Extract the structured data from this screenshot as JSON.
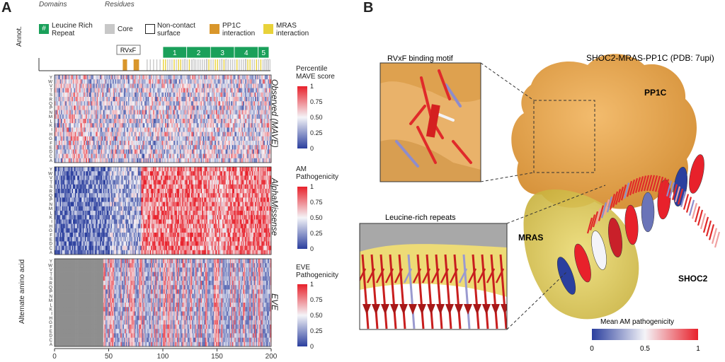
{
  "panels": {
    "a": "A",
    "b": "B"
  },
  "legend": {
    "domains_title": "Domains",
    "residues_title": "Residues",
    "lrr_symbol": "#",
    "lrr_label_1": "Leucine Rich",
    "lrr_label_2": "Repeat",
    "core_label": "Core",
    "noncontact_label_1": "Non-contact",
    "noncontact_label_2": "surface",
    "pp1c_label_1": "PP1C",
    "pp1c_label_2": "interaction",
    "mras_label_1": "MRAS",
    "mras_label_2": "interaction"
  },
  "annot": {
    "axis_label": "Annot.",
    "rvxf_label": "RVxF",
    "lrr_numbers": [
      "1",
      "2",
      "3",
      "4",
      "5"
    ]
  },
  "heatmaps": {
    "y_axis_label": "Alternate amino acid",
    "amino_acids": [
      "Y",
      "W",
      "V",
      "T",
      "S",
      "R",
      "Q",
      "P",
      "N",
      "M",
      "L",
      "K",
      "I",
      "H",
      "G",
      "F",
      "E",
      "D",
      "C",
      "A"
    ],
    "observed_label": "Observed (MAVE)",
    "alphamissense_label": "AlphaMissense",
    "eve_label": "EVE",
    "x_ticks": [
      "0",
      "50",
      "100",
      "150",
      "200"
    ]
  },
  "colorbars": {
    "mave_title_1": "Percentile",
    "mave_title_2": "MAVE score",
    "am_title_1": "AM",
    "am_title_2": "Pathogenicity",
    "eve_title_1": "EVE",
    "eve_title_2": "Pathogenicity",
    "ticks": [
      "1",
      "0.75",
      "0.50",
      "0.25",
      "0"
    ],
    "am_ticks": [
      "1",
      "0.75",
      "0.50",
      "0.25",
      "0"
    ]
  },
  "structure": {
    "title": "SHOC2-MRAS-PP1C (PDB: 7upi)",
    "pp1c_label": "PP1C",
    "mras_label": "MRAS",
    "shoc2_label": "SHOC2",
    "rvxf_inset_label": "RVxF binding motif",
    "lrr_inset_label": "Leucine-rich repeats",
    "cbar_title": "Mean AM pathogenicity",
    "cbar_ticks": [
      "0",
      "0.5",
      "1"
    ]
  },
  "colors": {
    "blue": "#2b3f9e",
    "white": "#f4f4f8",
    "red": "#e8212b",
    "lrr_green": "#1aa05a",
    "core_gray": "#c8c8c8",
    "pp1c_orange": "#d9962b",
    "mras_yellow": "#e8d23a",
    "eve_missing": "#8e8e8e"
  }
}
